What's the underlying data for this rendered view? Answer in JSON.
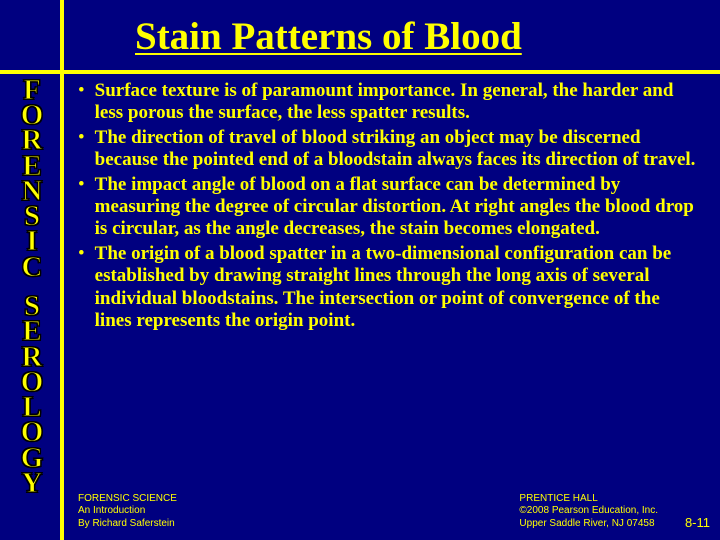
{
  "title": "Stain Patterns of Blood",
  "vertical_label": "FORENSIC SEROLOGY",
  "bullets": [
    "Surface texture is of paramount importance. In general, the harder and less porous the surface, the less spatter results.",
    "The direction of travel of blood striking an object may be discerned because the pointed end of a bloodstain always faces its direction of travel.",
    "The impact angle of blood on a flat surface can be determined by measuring the degree of circular distortion. At right angles the blood drop is circular, as the angle decreases, the stain becomes elongated.",
    "The origin of a blood spatter in a two-dimensional configuration can be established by drawing straight lines through the long axis of several individual bloodstains. The intersection or point of convergence of the lines represents the origin point."
  ],
  "footer_left": {
    "line1": "FORENSIC SCIENCE",
    "line2": "An Introduction",
    "line3": "By Richard Saferstein"
  },
  "footer_right": {
    "line1": "PRENTICE HALL",
    "line2": "©2008 Pearson Education, Inc.",
    "line3": "Upper Saddle River, NJ 07458"
  },
  "page_num": "8-11",
  "colors": {
    "background": "#000080",
    "text": "#ffff00",
    "line": "#ffff00"
  }
}
